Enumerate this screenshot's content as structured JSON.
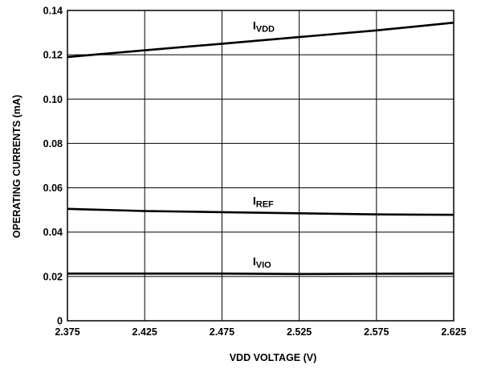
{
  "chart_data": {
    "type": "line",
    "title": "",
    "xlabel": "VDD VOLTAGE (V)",
    "ylabel": "OPERATING CURRENTS (mA)",
    "xlim": [
      2.375,
      2.625
    ],
    "ylim": [
      0,
      0.14
    ],
    "x_ticks": [
      "2.375",
      "2.425",
      "2.475",
      "2.525",
      "2.575",
      "2.625"
    ],
    "y_ticks": [
      "0",
      "0.02",
      "0.04",
      "0.06",
      "0.08",
      "0.10",
      "0.12",
      "0.14"
    ],
    "grid": true,
    "x": [
      2.375,
      2.425,
      2.475,
      2.525,
      2.575,
      2.625
    ],
    "series": [
      {
        "name": "I_VDD",
        "label_main": "I",
        "label_sub": "VDD",
        "values": [
          0.119,
          0.122,
          0.125,
          0.128,
          0.131,
          0.1345
        ],
        "label_at": [
          2.495,
          0.1315
        ]
      },
      {
        "name": "I_REF",
        "label_main": "I",
        "label_sub": "REF",
        "values": [
          0.0505,
          0.0495,
          0.049,
          0.0485,
          0.048,
          0.0478
        ],
        "label_at": [
          2.495,
          0.0525
        ]
      },
      {
        "name": "I_VIO",
        "label_main": "I",
        "label_sub": "VIO",
        "values": [
          0.0213,
          0.0213,
          0.0213,
          0.0211,
          0.0212,
          0.0213
        ],
        "label_at": [
          2.495,
          0.025
        ]
      }
    ]
  }
}
